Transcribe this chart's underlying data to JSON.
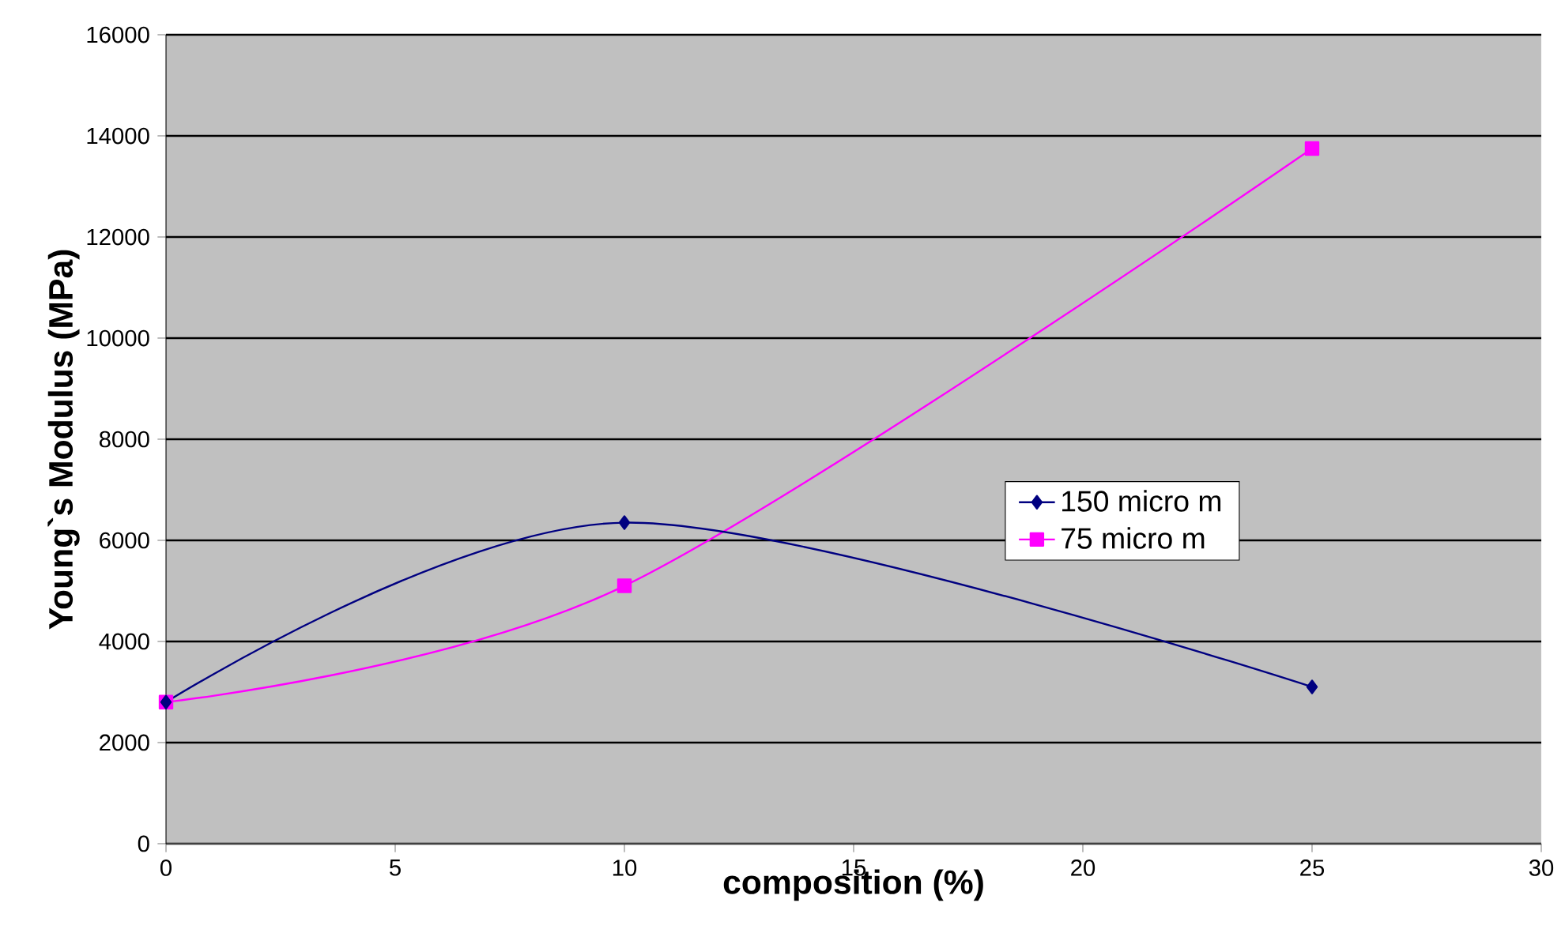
{
  "chart_data": {
    "type": "line",
    "xlabel": "composition (%)",
    "ylabel": "Young`s Modulus (MPa)",
    "x": [
      0,
      10,
      25
    ],
    "series": [
      {
        "name": "150 micro m",
        "color": "#000080",
        "marker": "diamond",
        "values": [
          2800,
          6350,
          3100
        ]
      },
      {
        "name": "75 micro m",
        "color": "#ff00ff",
        "marker": "square",
        "values": [
          2800,
          5100,
          13750
        ]
      }
    ],
    "xlim": [
      0,
      30
    ],
    "xticks": [
      0,
      5,
      10,
      15,
      20,
      25,
      30
    ],
    "ylim": [
      0,
      16000
    ],
    "yticks": [
      0,
      2000,
      4000,
      6000,
      8000,
      10000,
      12000,
      14000,
      16000
    ],
    "grid": "y",
    "legend": "right",
    "line_style": "solid"
  }
}
